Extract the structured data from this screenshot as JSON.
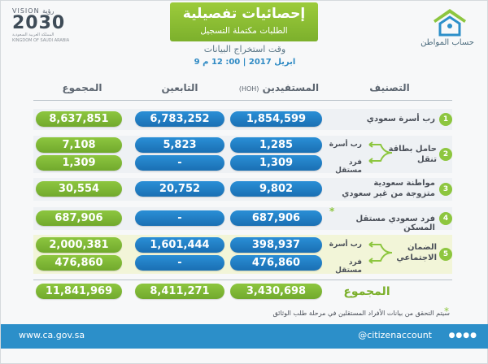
{
  "header": {
    "title": "إحصائيات تفصيلية",
    "subtitle": "الطلبات مكتملة التسجيل",
    "extract_label": "وقت استخراج البيانات",
    "extract_date": "9 ابريل 2017 | 00: 12 م"
  },
  "vision_logo": {
    "word": "VISION رؤية",
    "year": "2030",
    "sub": "المملكة العربية السعودية KINGDOM OF SAUDI ARABIA"
  },
  "brand": {
    "name": "حساب المواطن"
  },
  "columns": {
    "total": "المجموع",
    "dependents": "التابعين",
    "beneficiaries": "المستفيدين",
    "beneficiaries_hoh": "(HOH)",
    "classification": "التصنيف"
  },
  "rows": [
    {
      "num": "1",
      "label": "رب أسرة سعودي",
      "total": "8,637,851",
      "dependents": "6,783,252",
      "beneficiaries": "1,854,599"
    },
    {
      "num": "2",
      "label": "حامل بطاقة تنقل",
      "sub1": "رب أسرة",
      "sub2": "فرد مستقل",
      "total1": "7,108",
      "dependents1": "5,823",
      "beneficiaries1": "1,285",
      "total2": "1,309",
      "dependents2": "-",
      "beneficiaries2": "1,309"
    },
    {
      "num": "3",
      "label1": "مواطنة سعودية",
      "label2": "متزوجة من غير سعودي",
      "total": "30,554",
      "dependents": "20,752",
      "beneficiaries": "9,802"
    },
    {
      "num": "4",
      "label": "فرد سعودي مستقل المسكن",
      "star": "*",
      "total": "687,906",
      "dependents": "-",
      "beneficiaries": "687,906"
    },
    {
      "num": "5",
      "label1": "الضمان",
      "label2": "الاجتماعي",
      "sub1": "رب أسرة",
      "sub2": "فرد مستقل",
      "total1": "2,000,381",
      "dependents1": "1,601,444",
      "beneficiaries1": "398,937",
      "total2": "476,860",
      "dependents2": "-",
      "beneficiaries2": "476,860"
    }
  ],
  "grand_total": {
    "label": "المجموع",
    "total": "11,841,969",
    "dependents": "8,411,271",
    "beneficiaries": "3,430,698"
  },
  "note": {
    "star": "*",
    "text": "سيتم التحقق من بيانات الأفراد المستقلين في مرحلة طلب الوثائق"
  },
  "footer": {
    "url": "www.ca.gov.sa",
    "handle": "@citizenaccount"
  },
  "colors": {
    "green": "#8dc63f",
    "blue": "#1a6fb3",
    "footer": "#2c8fc9"
  }
}
